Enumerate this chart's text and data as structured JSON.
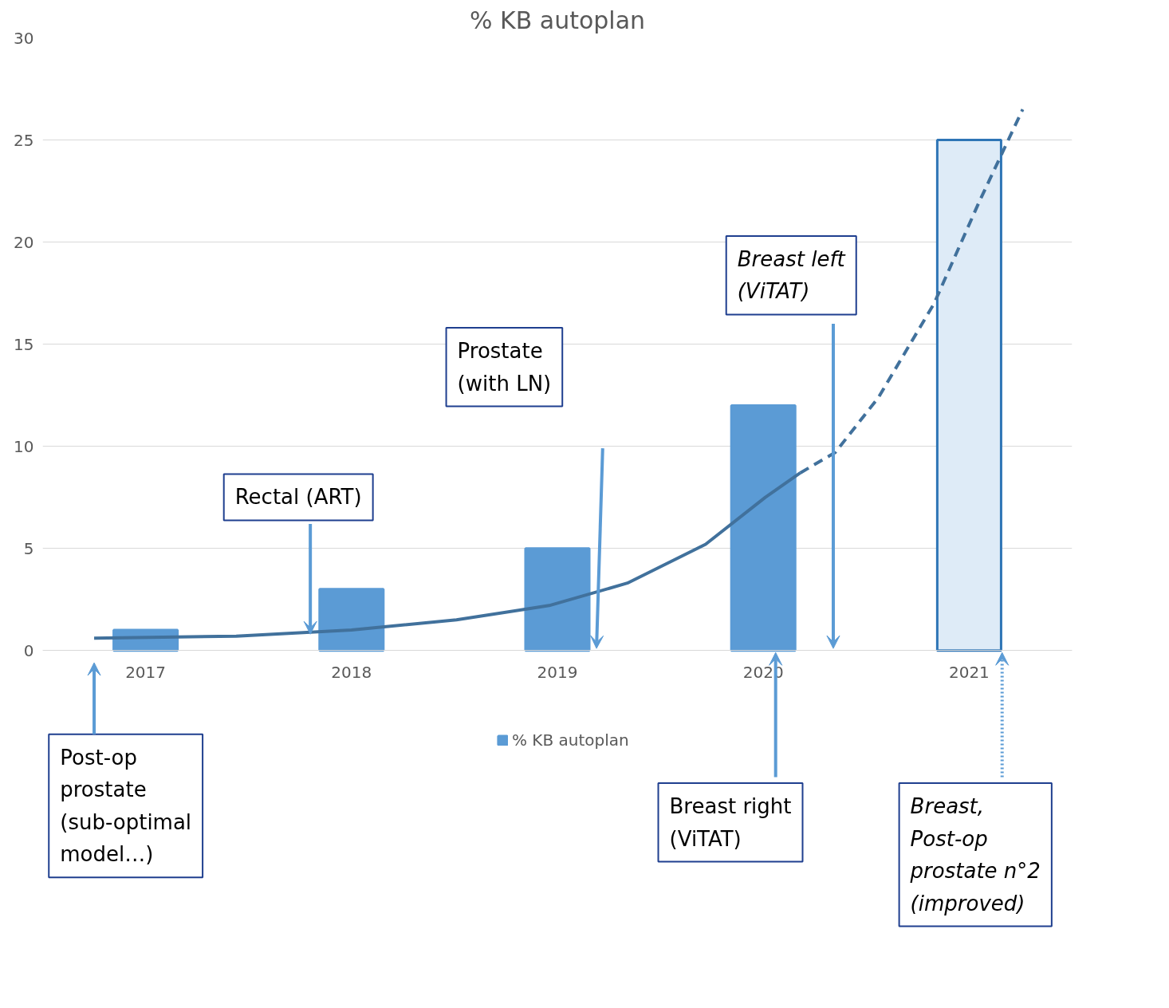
{
  "chart_data": {
    "type": "bar",
    "title": "% KB autoplan",
    "x": [
      2017,
      2018,
      2019,
      2020,
      2021
    ],
    "xlim": [
      2016.5,
      2021.5
    ],
    "xticks": [
      2017,
      2018,
      2019,
      2020,
      2021
    ],
    "ylim": [
      0,
      30
    ],
    "yticks": [
      0,
      5,
      10,
      15,
      20,
      25,
      30
    ],
    "grid": "y",
    "legend": "bottom",
    "series": [
      {
        "name": "% KB autoplan",
        "colors": [
          "#5b9bd5",
          "#5b9bd5",
          "#5b9bd5",
          "#5b9bd5",
          "#deebf7"
        ],
        "values": [
          1,
          3,
          5,
          12,
          25
        ]
      },
      {
        "type": "line",
        "color": "#41719c",
        "line_style": "solid",
        "x": [
          2016.75,
          2017.44,
          2018.0,
          2018.51,
          2018.96,
          2019.34,
          2019.72,
          2020.01,
          2020.18
        ],
        "values": [
          0.6,
          0.7,
          1.0,
          1.5,
          2.2,
          3.3,
          5.2,
          7.5,
          8.7
        ]
      },
      {
        "type": "line",
        "color": "#41719c",
        "line_style": "dashed",
        "x": [
          2020.18,
          2020.35,
          2020.56,
          2020.83,
          2021.05,
          2021.26
        ],
        "values": [
          8.7,
          9.7,
          12.4,
          17,
          22,
          26.5
        ]
      }
    ],
    "annotations": [
      "Post-op\nprostate\n(sub-optimal\nmodel…)",
      {
        "text": "Rectal (ART)",
        "x": 2017.8,
        "y": 0.8
      },
      "Prostate\n(with LN)",
      "Breast left\n(ViTAT)",
      "Breast right\n(ViTAT)",
      "Breast,\nPost-op\nprostate n°2\n(improved)"
    ]
  }
}
